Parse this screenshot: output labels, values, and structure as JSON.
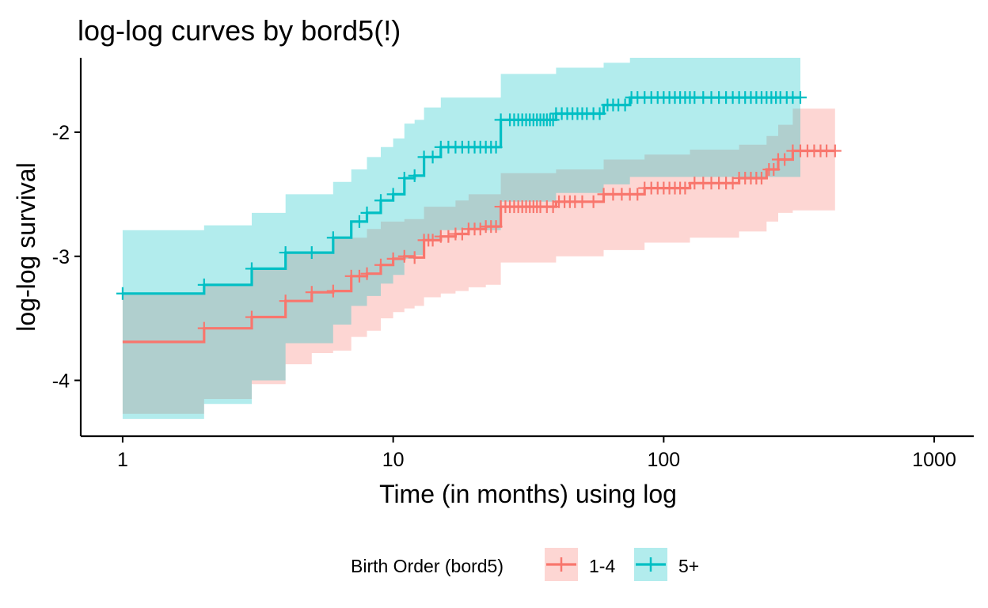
{
  "chart_data": {
    "type": "line",
    "title": "log-log curves by bord5(!)",
    "xlabel": "Time (in months) using log",
    "ylabel": "log-log survival",
    "x_scale": "log10",
    "xlim": [
      0.7,
      1400
    ],
    "ylim": [
      -4.45,
      -1.4
    ],
    "x_ticks": [
      1,
      10,
      100,
      1000
    ],
    "x_tick_labels": [
      "1",
      "10",
      "100",
      "1000"
    ],
    "y_ticks": [
      -4,
      -3,
      -2
    ],
    "y_tick_labels": [
      "-4",
      "-3",
      "-2"
    ],
    "grid": false,
    "legend": {
      "title": "Birth Order (bord5)",
      "position": "bottom",
      "entries": [
        "1-4",
        "5+"
      ]
    },
    "series": [
      {
        "name": "1-4",
        "color": "#F8766D",
        "fill": "#F8766D",
        "steps": [
          {
            "x": 1,
            "y": -3.69,
            "lo": -4.27,
            "hi": -3.3
          },
          {
            "x": 2,
            "y": -3.58,
            "lo": -4.15,
            "hi": -3.22
          },
          {
            "x": 3,
            "y": -3.49,
            "lo": -4.03,
            "hi": -3.1
          },
          {
            "x": 4,
            "y": -3.36,
            "lo": -3.87,
            "hi": -2.97
          },
          {
            "x": 5,
            "y": -3.29,
            "lo": -3.78,
            "hi": -2.97
          },
          {
            "x": 6,
            "y": -3.28,
            "lo": -3.76,
            "hi": -2.85
          },
          {
            "x": 7,
            "y": -3.16,
            "lo": -3.65,
            "hi": -2.85
          },
          {
            "x": 8,
            "y": -3.14,
            "lo": -3.6,
            "hi": -2.78
          },
          {
            "x": 9,
            "y": -3.07,
            "lo": -3.5,
            "hi": -2.72
          },
          {
            "x": 10,
            "y": -3.02,
            "lo": -3.45,
            "hi": -2.72
          },
          {
            "x": 11,
            "y": -3.0,
            "lo": -3.42,
            "hi": -2.7
          },
          {
            "x": 12,
            "y": -3.01,
            "lo": -3.4,
            "hi": -2.7
          },
          {
            "x": 13,
            "y": -2.87,
            "lo": -3.33,
            "hi": -2.6
          },
          {
            "x": 15,
            "y": -2.84,
            "lo": -3.3,
            "hi": -2.6
          },
          {
            "x": 17,
            "y": -2.82,
            "lo": -3.28,
            "hi": -2.55
          },
          {
            "x": 19,
            "y": -2.78,
            "lo": -3.25,
            "hi": -2.5
          },
          {
            "x": 22,
            "y": -2.76,
            "lo": -3.23,
            "hi": -2.5
          },
          {
            "x": 25,
            "y": -2.6,
            "lo": -3.05,
            "hi": -2.33
          },
          {
            "x": 40,
            "y": -2.56,
            "lo": -3.0,
            "hi": -2.3
          },
          {
            "x": 60,
            "y": -2.5,
            "lo": -2.95,
            "hi": -2.22
          },
          {
            "x": 85,
            "y": -2.45,
            "lo": -2.89,
            "hi": -2.18
          },
          {
            "x": 125,
            "y": -2.41,
            "lo": -2.85,
            "hi": -2.14
          },
          {
            "x": 190,
            "y": -2.37,
            "lo": -2.8,
            "hi": -2.1
          },
          {
            "x": 240,
            "y": -2.3,
            "lo": -2.72,
            "hi": -2.03
          },
          {
            "x": 265,
            "y": -2.22,
            "lo": -2.65,
            "hi": -1.94
          },
          {
            "x": 300,
            "y": -2.15,
            "lo": -2.63,
            "hi": -1.81
          }
        ],
        "end_x": 430,
        "censor_x": [
          2,
          3,
          4,
          5,
          6,
          7,
          7.5,
          8,
          9,
          10,
          11,
          12,
          13,
          13.5,
          14,
          15,
          16,
          17,
          18,
          19,
          20,
          21,
          22,
          23,
          24,
          25,
          26,
          27,
          28,
          29,
          30,
          31,
          32,
          33,
          34,
          35,
          37,
          39,
          41,
          43,
          45,
          47,
          50,
          55,
          60,
          65,
          70,
          75,
          80,
          85,
          90,
          95,
          100,
          105,
          110,
          115,
          120,
          130,
          140,
          150,
          160,
          170,
          180,
          190,
          200,
          210,
          220,
          230,
          245,
          255,
          265,
          280,
          300,
          320,
          340,
          360,
          380,
          400,
          430
        ]
      },
      {
        "name": "5+",
        "color": "#00BFC4",
        "fill": "#00BFC4",
        "steps": [
          {
            "x": 1,
            "y": -3.3,
            "lo": -4.31,
            "hi": -2.79
          },
          {
            "x": 2,
            "y": -3.23,
            "lo": -4.19,
            "hi": -2.75
          },
          {
            "x": 3,
            "y": -3.1,
            "lo": -4.0,
            "hi": -2.65
          },
          {
            "x": 4,
            "y": -2.97,
            "lo": -3.7,
            "hi": -2.5
          },
          {
            "x": 6,
            "y": -2.85,
            "lo": -3.55,
            "hi": -2.4
          },
          {
            "x": 7,
            "y": -2.72,
            "lo": -3.4,
            "hi": -2.3
          },
          {
            "x": 8,
            "y": -2.65,
            "lo": -3.32,
            "hi": -2.2
          },
          {
            "x": 9,
            "y": -2.55,
            "lo": -3.22,
            "hi": -2.12
          },
          {
            "x": 10,
            "y": -2.5,
            "lo": -3.15,
            "hi": -2.05
          },
          {
            "x": 11,
            "y": -2.37,
            "lo": -3.02,
            "hi": -1.93
          },
          {
            "x": 12,
            "y": -2.35,
            "lo": -2.99,
            "hi": -1.9
          },
          {
            "x": 13,
            "y": -2.2,
            "lo": -2.88,
            "hi": -1.8
          },
          {
            "x": 15,
            "y": -2.12,
            "lo": -2.79,
            "hi": -1.72
          },
          {
            "x": 25,
            "y": -1.9,
            "lo": -2.56,
            "hi": -1.53
          },
          {
            "x": 40,
            "y": -1.85,
            "lo": -2.49,
            "hi": -1.48
          },
          {
            "x": 60,
            "y": -1.78,
            "lo": -2.42,
            "hi": -1.44
          },
          {
            "x": 75,
            "y": -1.72,
            "lo": -2.36,
            "hi": -1.4
          }
        ],
        "end_x": 320,
        "censor_x": [
          1,
          2,
          3,
          4,
          5,
          6,
          7.5,
          8,
          9,
          10,
          11,
          12,
          13,
          14,
          15,
          16,
          17,
          18,
          19,
          20,
          21,
          22,
          23,
          24,
          25,
          27,
          28,
          29,
          30,
          31,
          32,
          33,
          34,
          35,
          36,
          37,
          38,
          39,
          40,
          42,
          44,
          46,
          48,
          50,
          52,
          55,
          58,
          62,
          65,
          68,
          72,
          76,
          80,
          85,
          90,
          95,
          100,
          105,
          110,
          115,
          120,
          125,
          130,
          140,
          150,
          160,
          170,
          180,
          190,
          200,
          210,
          220,
          230,
          240,
          250,
          260,
          270,
          285,
          300,
          320
        ]
      }
    ]
  }
}
